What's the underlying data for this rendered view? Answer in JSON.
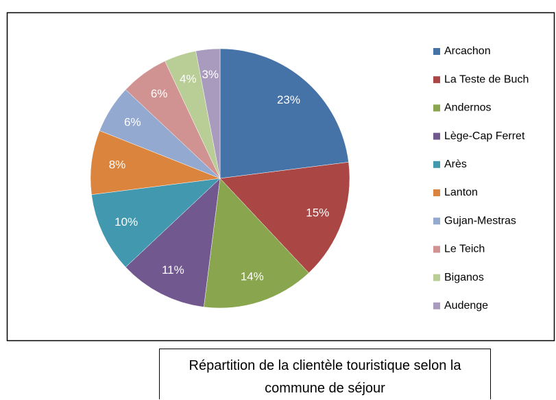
{
  "chart_data": {
    "type": "pie",
    "title": "Répartition de la clientèle touristique selon la commune de séjour",
    "categories": [
      "Arcachon",
      "La Teste de Buch",
      "Andernos",
      "Lège-Cap Ferret",
      "Arès",
      "Lanton",
      "Gujan-Mestras",
      "Le Teich",
      "Biganos",
      "Audenge"
    ],
    "values": [
      23,
      15,
      14,
      11,
      10,
      8,
      6,
      6,
      4,
      3
    ],
    "value_labels": [
      "23%",
      "15%",
      "14%",
      "11%",
      "10%",
      "8%",
      "6%",
      "6%",
      "4%",
      "3%"
    ],
    "colors": [
      "#4572a7",
      "#aa4643",
      "#89a54e",
      "#71588f",
      "#4198af",
      "#db843d",
      "#93a9cf",
      "#d19392",
      "#b9cd96",
      "#a99bbd"
    ],
    "legend": "right"
  }
}
